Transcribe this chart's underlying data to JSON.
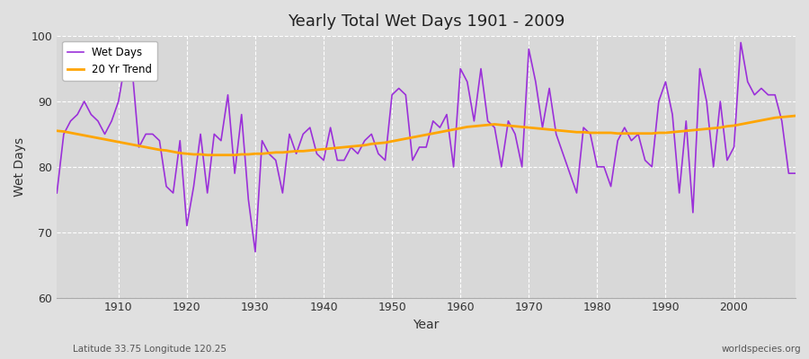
{
  "title": "Yearly Total Wet Days 1901 - 2009",
  "xlabel": "Year",
  "ylabel": "Wet Days",
  "xlim": [
    1901,
    2009
  ],
  "ylim": [
    60,
    100
  ],
  "yticks": [
    60,
    70,
    80,
    90,
    100
  ],
  "xticks": [
    1910,
    1920,
    1930,
    1940,
    1950,
    1960,
    1970,
    1980,
    1990,
    2000
  ],
  "wet_days_color": "#9b30d9",
  "trend_color": "#ffa500",
  "background_color": "#e0e0e0",
  "plot_bg_color": "#d8d8d8",
  "legend_labels": [
    "Wet Days",
    "20 Yr Trend"
  ],
  "bottom_left_text": "Latitude 33.75 Longitude 120.25",
  "bottom_right_text": "worldspecies.org",
  "years": [
    1901,
    1902,
    1903,
    1904,
    1905,
    1906,
    1907,
    1908,
    1909,
    1910,
    1911,
    1912,
    1913,
    1914,
    1915,
    1916,
    1917,
    1918,
    1919,
    1920,
    1921,
    1922,
    1923,
    1924,
    1925,
    1926,
    1927,
    1928,
    1929,
    1930,
    1931,
    1932,
    1933,
    1934,
    1935,
    1936,
    1937,
    1938,
    1939,
    1940,
    1941,
    1942,
    1943,
    1944,
    1945,
    1946,
    1947,
    1948,
    1949,
    1950,
    1951,
    1952,
    1953,
    1954,
    1955,
    1956,
    1957,
    1958,
    1959,
    1960,
    1961,
    1962,
    1963,
    1964,
    1965,
    1966,
    1967,
    1968,
    1969,
    1970,
    1971,
    1972,
    1973,
    1974,
    1975,
    1976,
    1977,
    1978,
    1979,
    1980,
    1981,
    1982,
    1983,
    1984,
    1985,
    1986,
    1987,
    1988,
    1989,
    1990,
    1991,
    1992,
    1993,
    1994,
    1995,
    1996,
    1997,
    1998,
    1999,
    2000,
    2001,
    2002,
    2003,
    2004,
    2005,
    2006,
    2007,
    2008,
    2009
  ],
  "wet_days": [
    76,
    85,
    87,
    88,
    90,
    88,
    87,
    85,
    87,
    90,
    96,
    95,
    83,
    85,
    85,
    84,
    77,
    76,
    84,
    71,
    77,
    85,
    76,
    85,
    84,
    91,
    79,
    88,
    75,
    67,
    84,
    82,
    81,
    76,
    85,
    82,
    85,
    86,
    82,
    81,
    86,
    81,
    81,
    83,
    82,
    84,
    85,
    82,
    81,
    91,
    92,
    91,
    81,
    83,
    83,
    87,
    86,
    88,
    80,
    95,
    93,
    87,
    95,
    87,
    86,
    80,
    87,
    85,
    80,
    98,
    93,
    86,
    92,
    85,
    82,
    79,
    76,
    86,
    85,
    80,
    80,
    77,
    84,
    86,
    84,
    85,
    81,
    80,
    90,
    93,
    88,
    76,
    87,
    73,
    95,
    90,
    80,
    90,
    81,
    83,
    99,
    93,
    91,
    92,
    91,
    91,
    87,
    79,
    79
  ],
  "trend_values": [
    85.5,
    85.4,
    85.2,
    85.0,
    84.8,
    84.6,
    84.4,
    84.2,
    84.0,
    83.8,
    83.6,
    83.4,
    83.2,
    83.0,
    82.8,
    82.6,
    82.5,
    82.3,
    82.1,
    82.0,
    81.9,
    81.9,
    81.8,
    81.8,
    81.8,
    81.8,
    81.8,
    81.9,
    81.9,
    82.0,
    82.0,
    82.1,
    82.2,
    82.2,
    82.3,
    82.4,
    82.4,
    82.5,
    82.6,
    82.7,
    82.8,
    82.9,
    83.0,
    83.1,
    83.2,
    83.3,
    83.5,
    83.6,
    83.7,
    83.9,
    84.1,
    84.3,
    84.5,
    84.7,
    84.9,
    85.1,
    85.3,
    85.5,
    85.7,
    85.9,
    86.1,
    86.2,
    86.3,
    86.4,
    86.5,
    86.4,
    86.3,
    86.2,
    86.1,
    86.0,
    85.9,
    85.8,
    85.7,
    85.6,
    85.5,
    85.4,
    85.3,
    85.3,
    85.2,
    85.2,
    85.2,
    85.2,
    85.1,
    85.1,
    85.1,
    85.1,
    85.1,
    85.1,
    85.2,
    85.2,
    85.3,
    85.4,
    85.5,
    85.6,
    85.7,
    85.8,
    85.9,
    86.0,
    86.2,
    86.3,
    86.5,
    86.7,
    86.9,
    87.1,
    87.3,
    87.5,
    87.6,
    87.7,
    87.8
  ]
}
